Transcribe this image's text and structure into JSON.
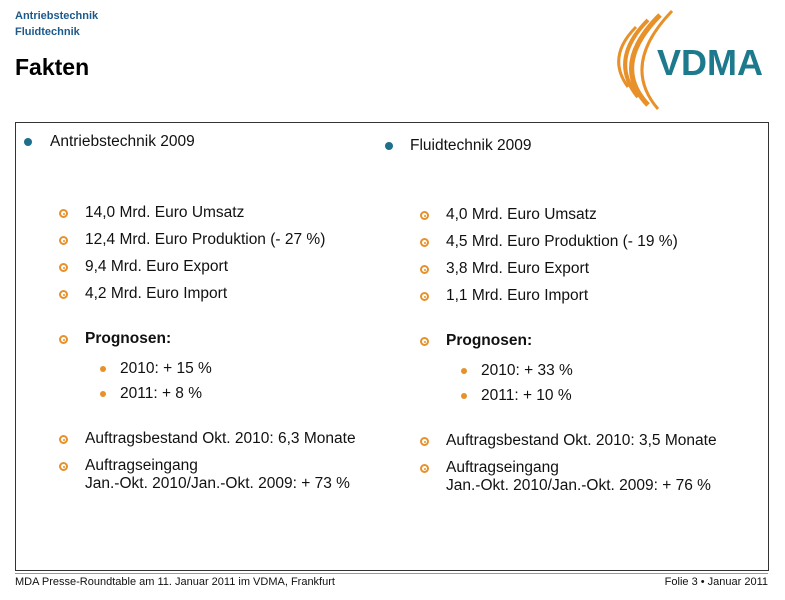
{
  "header": {
    "line1": "Antriebstechnik",
    "line2": "Fluidtechnik",
    "title": "Fakten",
    "logo": "VDMA"
  },
  "columns": [
    {
      "heading": "Antriebstechnik 2009",
      "items": [
        "14,0 Mrd. Euro Umsatz",
        "12,4 Mrd. Euro Produktion (- 27 %)",
        "9,4 Mrd. Euro Export",
        "4,2 Mrd. Euro Import"
      ],
      "prognosen_label": "Prognosen:",
      "prognosen": [
        "2010: + 15 %",
        "2011: + 8 %"
      ],
      "extra": [
        {
          "lines": [
            "Auftragsbestand Okt. 2010: 6,3 Monate"
          ]
        },
        {
          "lines": [
            "Auftragseingang",
            "Jan.-Okt. 2010/Jan.-Okt. 2009: + 73 %"
          ]
        }
      ]
    },
    {
      "heading": "Fluidtechnik 2009",
      "items": [
        "4,0 Mrd. Euro Umsatz",
        "4,5 Mrd. Euro Produktion (- 19 %)",
        "3,8 Mrd. Euro Export",
        "1,1 Mrd. Euro Import"
      ],
      "prognosen_label": "Prognosen:",
      "prognosen": [
        "2010: + 33 %",
        "2011: + 10 %"
      ],
      "extra": [
        {
          "lines": [
            "Auftragsbestand Okt. 2010: 3,5 Monate"
          ]
        },
        {
          "lines": [
            "Auftragseingang",
            "Jan.-Okt. 2010/Jan.-Okt. 2009: + 76 %"
          ]
        }
      ]
    }
  ],
  "footer": {
    "left": "MDA Presse-Roundtable am 11. Januar 2011 im VDMA, Frankfurt",
    "right": "Folie 3 • Januar 2011"
  }
}
